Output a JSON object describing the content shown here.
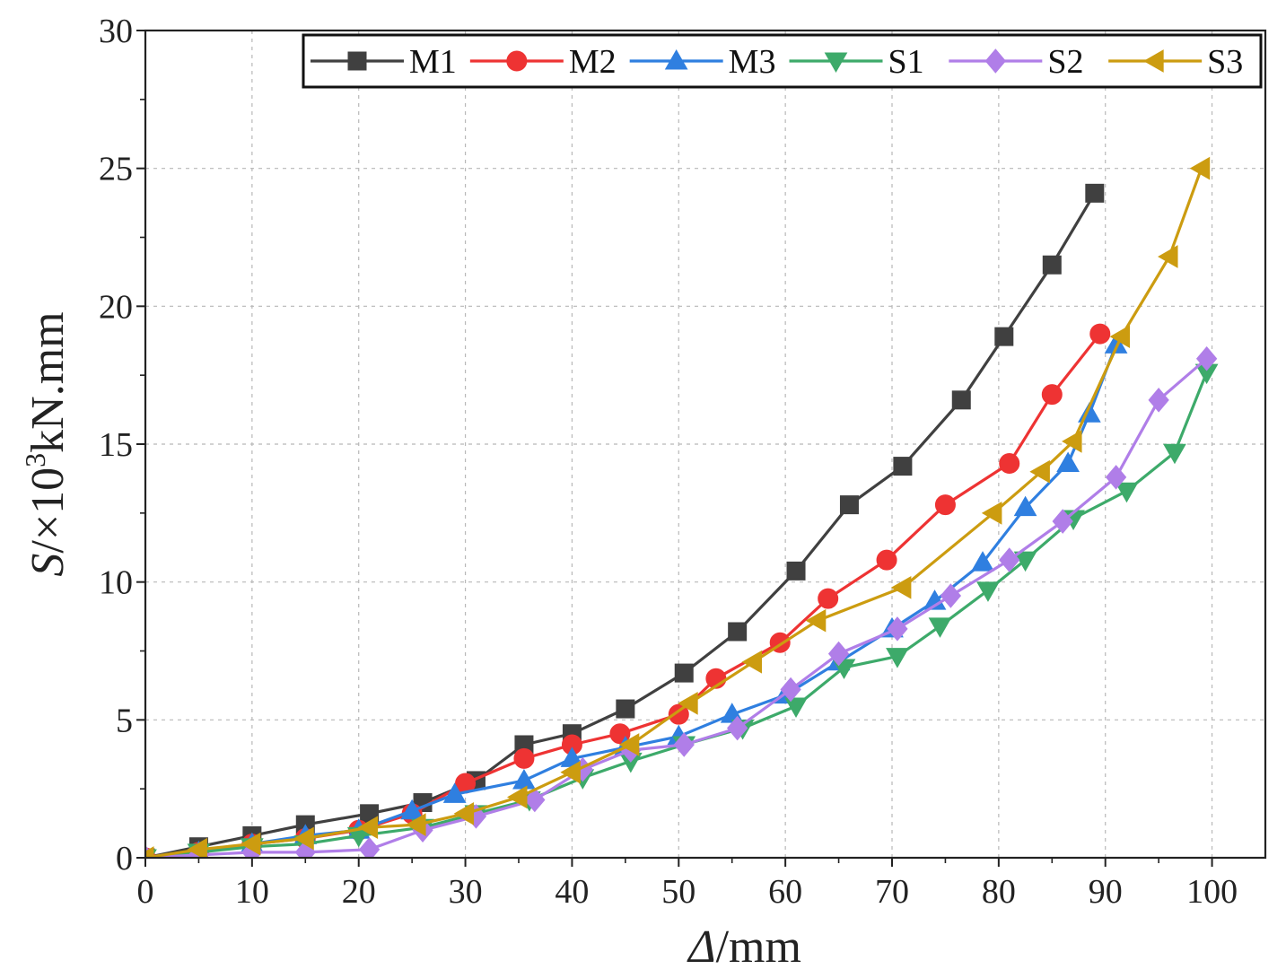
{
  "chart_data": {
    "type": "line",
    "title": "",
    "xlabel": {
      "symbol": "Δ",
      "unit": "/mm"
    },
    "ylabel": {
      "symbol": "S",
      "prefix": "/×10",
      "exponent": "3",
      "unit": "kN.mm"
    },
    "xlim": [
      0,
      105
    ],
    "ylim": [
      0,
      30
    ],
    "xticks": [
      0,
      10,
      20,
      30,
      40,
      50,
      60,
      70,
      80,
      90,
      100
    ],
    "yticks": [
      0,
      5,
      10,
      15,
      20,
      25,
      30
    ],
    "grid": true,
    "legend_position": "top",
    "series": [
      {
        "name": "M1",
        "color": "#404040",
        "marker": "square",
        "x": [
          0,
          5,
          10,
          15,
          21,
          26,
          31,
          35.5,
          40,
          45,
          50.5,
          55.5,
          61,
          66,
          71,
          76.5,
          80.5,
          85,
          89
        ],
        "y": [
          0,
          0.4,
          0.8,
          1.2,
          1.6,
          2.0,
          2.8,
          4.1,
          4.5,
          5.4,
          6.7,
          8.2,
          10.4,
          12.8,
          14.2,
          16.6,
          18.9,
          21.5,
          24.1
        ]
      },
      {
        "name": "M2",
        "color": "#ee3333",
        "marker": "circle",
        "x": [
          0,
          5,
          10,
          15,
          20,
          25,
          30,
          35.5,
          40,
          44.5,
          50,
          53.5,
          59.5,
          64,
          69.5,
          75,
          81,
          85,
          89.5
        ],
        "y": [
          0,
          0.2,
          0.5,
          0.7,
          1.0,
          1.6,
          2.7,
          3.6,
          4.1,
          4.5,
          5.2,
          6.5,
          7.8,
          9.4,
          10.8,
          12.8,
          14.3,
          16.8,
          19.0
        ]
      },
      {
        "name": "M3",
        "color": "#2f7fe0",
        "marker": "triangle-up",
        "x": [
          0,
          5,
          10,
          15,
          20,
          25,
          29,
          35.5,
          40,
          45,
          50,
          55,
          60,
          65,
          70,
          74,
          78.5,
          82.5,
          86.5,
          88.5,
          91
        ],
        "y": [
          0,
          0.2,
          0.5,
          0.8,
          1.0,
          1.7,
          2.3,
          2.8,
          3.6,
          4.0,
          4.4,
          5.2,
          5.9,
          7.1,
          8.3,
          9.3,
          10.7,
          12.7,
          14.3,
          16.1,
          18.6
        ]
      },
      {
        "name": "S1",
        "color": "#3daa6a",
        "marker": "triangle-down",
        "x": [
          0,
          5,
          10,
          15,
          20,
          26,
          31,
          36,
          41,
          45.5,
          50.5,
          56,
          61,
          65.5,
          70.5,
          74.5,
          79,
          82.5,
          87,
          92,
          96.5,
          99.5
        ],
        "y": [
          0,
          0.2,
          0.4,
          0.5,
          0.8,
          1.1,
          1.6,
          2.1,
          2.9,
          3.5,
          4.1,
          4.7,
          5.5,
          6.9,
          7.3,
          8.4,
          9.7,
          10.8,
          12.3,
          13.3,
          14.7,
          17.6
        ]
      },
      {
        "name": "S2",
        "color": "#b07ee8",
        "marker": "diamond",
        "x": [
          0,
          5,
          10,
          15,
          21,
          26,
          31,
          36.5,
          41,
          45.5,
          50.5,
          55.5,
          60.5,
          65,
          70.5,
          75.5,
          81,
          86,
          91,
          95,
          99.5
        ],
        "y": [
          0,
          0.1,
          0.2,
          0.2,
          0.3,
          1.0,
          1.5,
          2.1,
          3.2,
          3.9,
          4.1,
          4.7,
          6.1,
          7.4,
          8.3,
          9.5,
          10.8,
          12.2,
          13.8,
          16.6,
          18.1
        ]
      },
      {
        "name": "S3",
        "color": "#cc9c10",
        "marker": "triangle-left",
        "x": [
          0,
          5,
          10,
          15,
          21,
          25.5,
          30,
          35,
          40,
          45.5,
          51,
          57,
          63,
          71,
          79.5,
          84,
          87,
          91.5,
          96,
          99
        ],
        "y": [
          0,
          0.3,
          0.5,
          0.7,
          1.1,
          1.2,
          1.6,
          2.2,
          3.1,
          4.1,
          5.6,
          7.1,
          8.6,
          9.8,
          12.5,
          14.0,
          15.1,
          18.9,
          21.8,
          25.0
        ]
      }
    ]
  }
}
